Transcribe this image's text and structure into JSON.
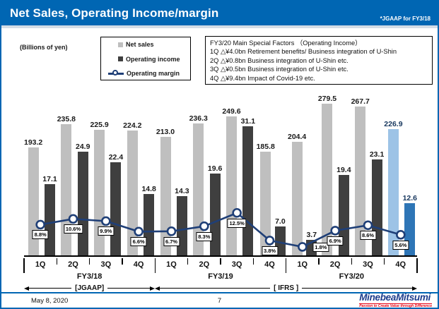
{
  "header": {
    "title": "Net Sales, Operating Income/margin",
    "note": "*JGAAP for FY3/18"
  },
  "legend": {
    "items": [
      {
        "label": "Net sales"
      },
      {
        "label": "Operating income"
      },
      {
        "label": "Operating margin"
      }
    ]
  },
  "factors": {
    "title": "FY3/20 Main Special Factors （Operating Income）",
    "items": [
      "1Q △¥4.0bn Retirement benefits/ Business integration of U-Shin",
      "2Q △¥0.8bn Business integration of U-Shin etc.",
      "3Q △¥0.5bn Business integration of U-Shin etc.",
      "4Q △¥9.4bn Impact of Covid-19 etc."
    ]
  },
  "chart_data": {
    "type": "bar+line",
    "title": "Net Sales, Operating Income/margin",
    "unit_label": "(Billions of yen)",
    "categories": [
      "1Q",
      "2Q",
      "3Q",
      "4Q",
      "1Q",
      "2Q",
      "3Q",
      "4Q",
      "1Q",
      "2Q",
      "3Q",
      "4Q"
    ],
    "fiscal_years": [
      "FY3/18",
      "FY3/19",
      "FY3/20"
    ],
    "standards": [
      {
        "label": "[JGAAP]",
        "span_years": 1
      },
      {
        "label": "[ IFRS ]",
        "span_years": 2
      }
    ],
    "series": [
      {
        "name": "Net sales",
        "values": [
          193.2,
          235.8,
          225.9,
          224.2,
          213.0,
          236.3,
          249.6,
          185.8,
          204.4,
          279.5,
          267.7,
          226.9
        ]
      },
      {
        "name": "Operating income",
        "values": [
          17.1,
          24.9,
          22.4,
          14.8,
          14.3,
          19.6,
          31.1,
          7.0,
          3.7,
          19.4,
          23.1,
          12.6
        ]
      },
      {
        "name": "Operating margin (%)",
        "values": [
          8.8,
          10.6,
          9.9,
          6.6,
          6.7,
          8.3,
          12.5,
          3.8,
          1.8,
          6.9,
          8.6,
          5.6
        ]
      }
    ],
    "highlight_index": 11,
    "legend_position": "top-left",
    "grid": false
  },
  "footer": {
    "date": "May 8, 2020",
    "page_number": "7",
    "logo_text": "MinebeaMitsumi",
    "logo_tagline": "Passion to Create Value through Difference"
  },
  "colors": {
    "header_blue": "#0066B3",
    "net_sales": "#BFBFBF",
    "operating_income": "#3F3F3F",
    "net_sales_highlight": "#9DC3E6",
    "operating_income_highlight": "#2E75B6",
    "margin_line": "#1F3F77",
    "highlight_text": "#17375E",
    "logo_blue": "#1B3C8C",
    "logo_red": "#E60012"
  }
}
